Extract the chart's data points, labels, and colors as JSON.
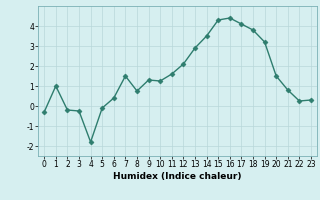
{
  "x": [
    0,
    1,
    2,
    3,
    4,
    5,
    6,
    7,
    8,
    9,
    10,
    11,
    12,
    13,
    14,
    15,
    16,
    17,
    18,
    19,
    20,
    21,
    22,
    23
  ],
  "y": [
    -0.3,
    1.0,
    -0.2,
    -0.25,
    -1.8,
    -0.1,
    0.4,
    1.5,
    0.75,
    1.3,
    1.25,
    1.6,
    2.1,
    2.9,
    3.5,
    4.3,
    4.4,
    4.1,
    3.8,
    3.2,
    1.5,
    0.8,
    0.25,
    0.3
  ],
  "line_color": "#2e7d6e",
  "marker": "D",
  "marker_size": 2.5,
  "bg_color": "#d6eff0",
  "grid_color": "#b8d8da",
  "xlabel": "Humidex (Indice chaleur)",
  "xlim": [
    -0.5,
    23.5
  ],
  "ylim": [
    -2.5,
    5.0
  ],
  "yticks": [
    -2,
    -1,
    0,
    1,
    2,
    3,
    4
  ],
  "xticks": [
    0,
    1,
    2,
    3,
    4,
    5,
    6,
    7,
    8,
    9,
    10,
    11,
    12,
    13,
    14,
    15,
    16,
    17,
    18,
    19,
    20,
    21,
    22,
    23
  ],
  "xlabel_fontsize": 6.5,
  "tick_fontsize": 5.5,
  "line_width": 1.0
}
